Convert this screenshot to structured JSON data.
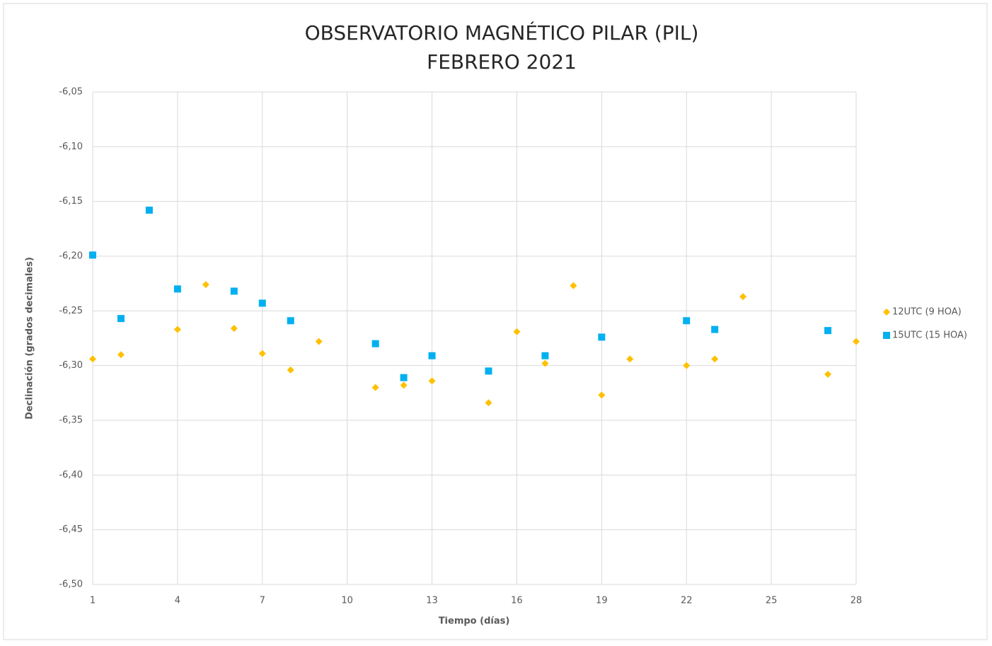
{
  "chart_data": {
    "type": "scatter",
    "title": "OBSERVATORIO MAGNÉTICO PILAR (PIL)",
    "subtitle": "FEBRERO 2021",
    "x_label": "Tiempo (días)",
    "y_label": "Declinación  (grados decimales)",
    "xlim": [
      1,
      28
    ],
    "xticks": [
      1,
      4,
      7,
      10,
      13,
      16,
      19,
      22,
      25,
      28
    ],
    "ylim": [
      -6.5,
      -6.05
    ],
    "yticks": [
      {
        "value": -6.5,
        "label": "-6,50"
      },
      {
        "value": -6.45,
        "label": "-6,45"
      },
      {
        "value": -6.4,
        "label": "-6,40"
      },
      {
        "value": -6.35,
        "label": "-6,35"
      },
      {
        "value": -6.3,
        "label": "-6,30"
      },
      {
        "value": -6.25,
        "label": "-6,25"
      },
      {
        "value": -6.2,
        "label": "-6,20"
      },
      {
        "value": -6.15,
        "label": "-6,15"
      },
      {
        "value": -6.1,
        "label": "-6,10"
      },
      {
        "value": -6.05,
        "label": "-6,05"
      }
    ],
    "grid": true,
    "legend": "right",
    "series": [
      {
        "name": "12UTC (9 HOA)",
        "color": "#FFC000",
        "marker": "diamond",
        "x": [
          1,
          2,
          4,
          5,
          6,
          7,
          8,
          9,
          11,
          12,
          13,
          15,
          16,
          17,
          18,
          19,
          20,
          22,
          23,
          24,
          27,
          28
        ],
        "values": [
          -6.294,
          -6.29,
          -6.267,
          -6.226,
          -6.266,
          -6.289,
          -6.304,
          -6.278,
          -6.32,
          -6.318,
          -6.314,
          -6.334,
          -6.269,
          -6.298,
          -6.227,
          -6.327,
          -6.294,
          -6.3,
          -6.294,
          -6.237,
          -6.308,
          -6.278
        ]
      },
      {
        "name": "15UTC (15 HOA)",
        "color": "#00B0F0",
        "marker": "square",
        "x": [
          1,
          2,
          3,
          4,
          6,
          7,
          8,
          11,
          12,
          13,
          15,
          17,
          19,
          22,
          23,
          27
        ],
        "values": [
          -6.199,
          -6.257,
          -6.158,
          -6.23,
          -6.232,
          -6.243,
          -6.259,
          -6.28,
          -6.311,
          -6.291,
          -6.305,
          -6.291,
          -6.274,
          -6.259,
          -6.267,
          -6.268
        ]
      }
    ]
  }
}
